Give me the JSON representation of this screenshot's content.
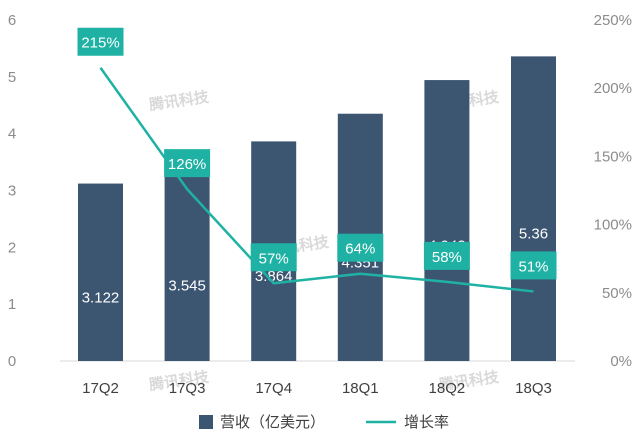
{
  "chart_data": {
    "type": "bar",
    "categories": [
      "17Q2",
      "17Q3",
      "17Q4",
      "18Q1",
      "18Q2",
      "18Q3"
    ],
    "series": [
      {
        "name": "营收（亿美元）",
        "kind": "bar",
        "axis": "left",
        "color": "#3c5571",
        "values": [
          3.122,
          3.545,
          3.864,
          4.351,
          4.943,
          5.36
        ],
        "labels": [
          "3.122",
          "3.545",
          "3.864",
          "4.351",
          "4.943",
          "5.36"
        ]
      },
      {
        "name": "增长率",
        "kind": "line",
        "axis": "right",
        "color": "#1fb2a4",
        "values": [
          215,
          126,
          57,
          64,
          58,
          51
        ],
        "labels": [
          "215%",
          "126%",
          "57%",
          "64%",
          "58%",
          "51%"
        ]
      }
    ],
    "y_left": {
      "ylim": [
        0,
        6
      ],
      "ticks": [
        "0",
        "1",
        "2",
        "3",
        "4",
        "5",
        "6"
      ]
    },
    "y_right": {
      "ylim": [
        0,
        250
      ],
      "ticks": [
        "0%",
        "50%",
        "100%",
        "150%",
        "200%",
        "250%"
      ]
    },
    "legend_position": "bottom-center",
    "grid": false
  },
  "watermark": "腾讯科技"
}
